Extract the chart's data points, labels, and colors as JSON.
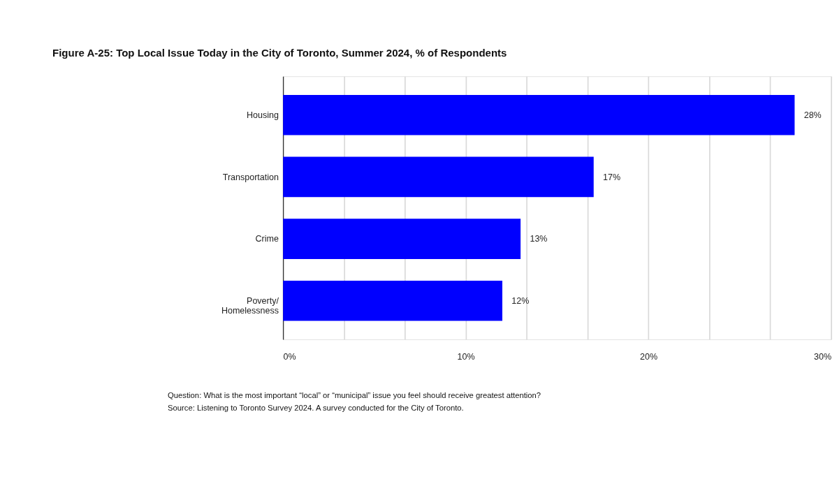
{
  "chart_data": {
    "type": "bar",
    "orientation": "horizontal",
    "title": "Figure A-25: Top Local Issue Today in the City of Toronto, Summer 2024, % of Respondents",
    "categories": [
      "Housing",
      "Transportation",
      "Crime",
      "Poverty/\nHomelessness"
    ],
    "values": [
      28,
      17,
      13,
      12
    ],
    "value_labels": [
      "28%",
      "17%",
      "13%",
      "12%"
    ],
    "color": "#0000ff",
    "xlim": [
      0,
      30
    ],
    "xticks": [
      {
        "value": 0,
        "label": "0%"
      },
      {
        "value": 3.333,
        "label": null
      },
      {
        "value": 6.667,
        "label": null
      },
      {
        "value": 10,
        "label": "10%"
      },
      {
        "value": 13.333,
        "label": null
      },
      {
        "value": 16.667,
        "label": null
      },
      {
        "value": 20,
        "label": "20%"
      },
      {
        "value": 23.333,
        "label": null
      },
      {
        "value": 26.667,
        "label": null
      },
      {
        "value": 30,
        "label": "30%"
      }
    ],
    "grid": "x",
    "annotations": [
      "Question: What is the most important “local” or “municipal” issue you feel should receive greatest attention?",
      "Source: Listening to Toronto Survey 2024. A survey conducted for the City of Toronto."
    ]
  }
}
